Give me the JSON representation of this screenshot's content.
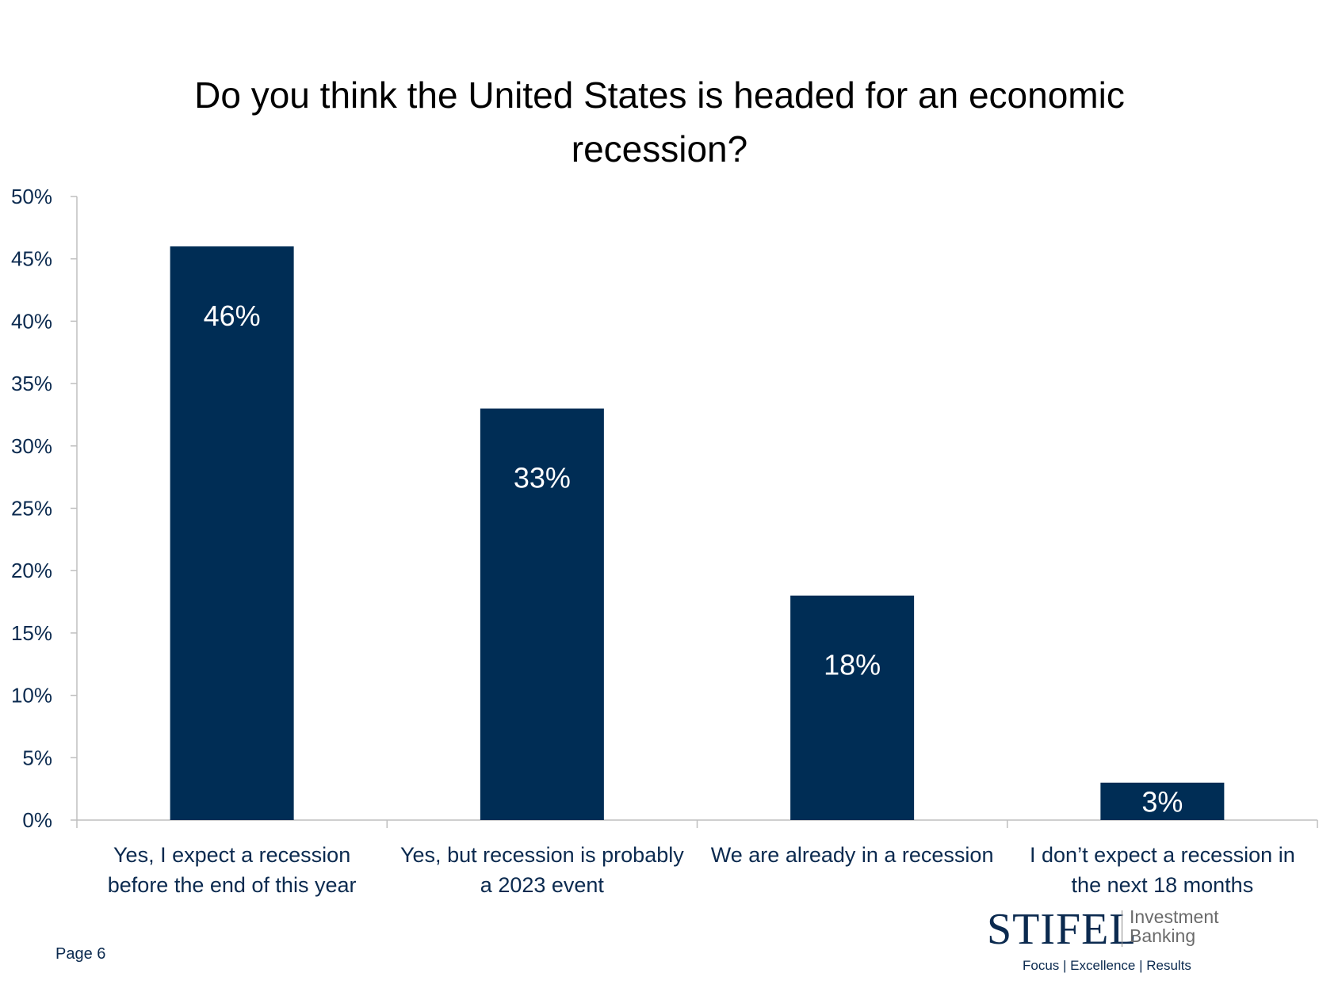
{
  "title": "Do you think the United States is headed for an economic recession?",
  "page_label": "Page 6",
  "logo": {
    "brand": "STIFEL",
    "line1": "Investment",
    "line2": "Banking",
    "tagline": "Focus | Excellence | Results"
  },
  "colors": {
    "bar": "#002D55",
    "axis_text": "#0b2a4f",
    "axis_line": "#bfbfbf",
    "data_label": "#ffffff"
  },
  "chart_data": {
    "type": "bar",
    "title": "Do you think the United States is headed for an economic recession?",
    "xlabel": "",
    "ylabel": "",
    "categories": [
      [
        "Yes, I expect a recession",
        "before the end of this year"
      ],
      [
        "Yes, but recession is probably",
        "a 2023 event"
      ],
      [
        "We are already in a recession"
      ],
      [
        "I don’t expect a recession in",
        "the next 18 months"
      ]
    ],
    "values": [
      46,
      33,
      18,
      3
    ],
    "data_labels": [
      "46%",
      "33%",
      "18%",
      "3%"
    ],
    "ylim": [
      0,
      50
    ],
    "yticks": [
      0,
      5,
      10,
      15,
      20,
      25,
      30,
      35,
      40,
      45,
      50
    ],
    "ytick_labels": [
      "0%",
      "5%",
      "10%",
      "15%",
      "20%",
      "25%",
      "30%",
      "35%",
      "40%",
      "45%",
      "50%"
    ],
    "grid": false,
    "legend": "none"
  }
}
